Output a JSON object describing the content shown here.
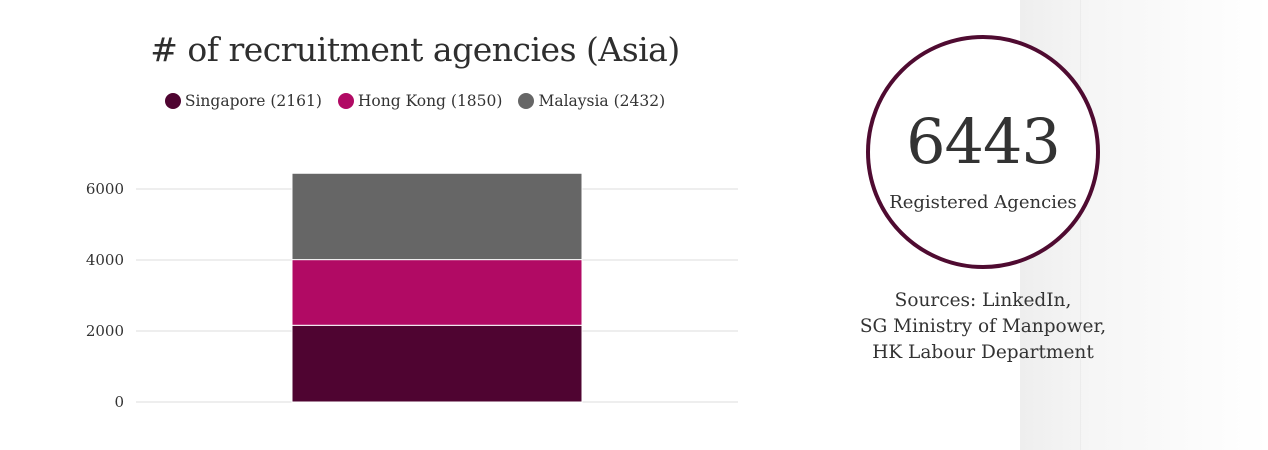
{
  "chart_data": {
    "type": "bar",
    "stacked": true,
    "title": "# of recruitment agencies (Asia)",
    "categories": [
      ""
    ],
    "series": [
      {
        "name": "Singapore (2161)",
        "values": [
          2161
        ],
        "color": "#4f0431"
      },
      {
        "name": "Hong Kong (1850)",
        "values": [
          1850
        ],
        "color": "#b10a64"
      },
      {
        "name": "Malaysia (2432)",
        "values": [
          2432
        ],
        "color": "#666666"
      }
    ],
    "yticks": [
      "0",
      "2000",
      "4000",
      "6000"
    ],
    "ylim": [
      0,
      6000
    ],
    "grid": true,
    "legend": "top"
  },
  "stat": {
    "number": "6443",
    "label": "Registered Agencies",
    "border_color": "#4f0b31"
  },
  "sources": [
    "Sources: LinkedIn,",
    "SG Ministry of Manpower,",
    "HK Labour Department"
  ]
}
